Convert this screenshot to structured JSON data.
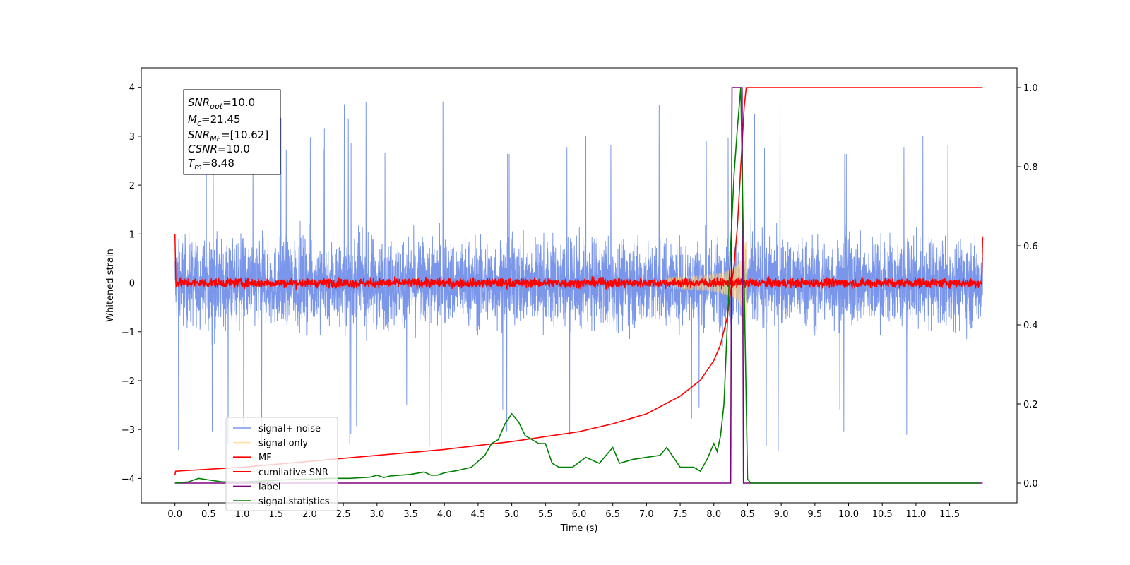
{
  "chart_data": {
    "type": "line",
    "xlabel": "Time (s)",
    "ylabel": "Whitened strain",
    "xlim": [
      -0.5,
      12.5
    ],
    "ylim": [
      -4.5,
      4.4
    ],
    "ylim_right": [
      -0.05,
      1.05
    ],
    "x_ticks": [
      0.0,
      0.5,
      1.0,
      1.5,
      2.0,
      2.5,
      3.0,
      3.5,
      4.0,
      4.5,
      5.0,
      5.5,
      6.0,
      6.5,
      7.0,
      7.5,
      8.0,
      8.5,
      9.0,
      9.5,
      10.0,
      10.5,
      11.0,
      11.5
    ],
    "x_tick_labels": [
      "0.0",
      "0.5",
      "1.0",
      "1.5",
      "2.0",
      "2.5",
      "3.0",
      "3.5",
      "4.0",
      "4.5",
      "5.0",
      "5.5",
      "6.0",
      "6.5",
      "7.0",
      "7.5",
      "8.0",
      "8.5",
      "9.0",
      "9.5",
      "10.0",
      "10.5",
      "11.0",
      "11.5"
    ],
    "y_ticks": [
      4,
      3,
      2,
      1,
      0,
      -1,
      -2,
      -3,
      -4
    ],
    "y_tick_labels": [
      "4",
      "3",
      "2",
      "1",
      "0",
      "−1",
      "−2",
      "−3",
      "−4"
    ],
    "y_right_ticks": [
      1.0,
      0.8,
      0.6,
      0.4,
      0.2,
      0.0
    ],
    "y_right_tick_labels": [
      "1.0",
      "0.8",
      "0.6",
      "0.4",
      "0.2",
      "0.0"
    ],
    "annotation": {
      "lines": [
        {
          "base": "SNR",
          "sub": "opt",
          "rest": "=10.0"
        },
        {
          "base": "M",
          "sub": "c",
          "rest": "=21.45"
        },
        {
          "base": "SNR",
          "sub": "MF",
          "rest": "=[10.62]"
        },
        {
          "base": "CSNR",
          "sub": "",
          "rest": "=10.0"
        },
        {
          "base": "T",
          "sub": "m",
          "rest": "=8.48"
        }
      ]
    },
    "legend_placement": "lower-left",
    "series": [
      {
        "name": "signal+ noise",
        "color": "#4169e1",
        "axis": "left",
        "x_range": [
          0.0,
          11.99
        ],
        "envelope": "noise, mostly within ±1.5, spikes to about ±3.9"
      },
      {
        "name": "signal only",
        "color": "#ffd27f",
        "axis": "left",
        "x_range": [
          7.3,
          8.48
        ],
        "envelope": "chirp, amplitude growing to about ±0.8 near 8.4"
      },
      {
        "name": "MF",
        "color": "#ff0000",
        "axis": "left",
        "x_range": [
          0.0,
          11.99
        ],
        "envelope": "noise around 0, within about ±0.25"
      },
      {
        "name": "cumilative SNR",
        "color": "#ff0000",
        "axis": "right",
        "x": [
          0.0,
          0.01,
          1.0,
          2.0,
          3.0,
          4.0,
          5.0,
          6.0,
          6.5,
          7.0,
          7.5,
          7.8,
          8.0,
          8.1,
          8.2,
          8.3,
          8.35,
          8.4,
          8.45,
          8.48,
          9.0,
          10.0,
          11.0,
          11.99
        ],
        "y": [
          0.02,
          0.03,
          0.04,
          0.055,
          0.07,
          0.085,
          0.105,
          0.13,
          0.15,
          0.175,
          0.22,
          0.26,
          0.31,
          0.35,
          0.42,
          0.55,
          0.65,
          0.8,
          0.95,
          1.0,
          1.0,
          1.0,
          1.0,
          1.0
        ]
      },
      {
        "name": "label",
        "color": "#800080",
        "axis": "right",
        "x": [
          0.0,
          8.25,
          8.27,
          8.42,
          8.44,
          8.45,
          11.99
        ],
        "y": [
          0.0,
          0.0,
          1.0,
          1.0,
          0.0,
          0.0,
          0.0
        ]
      },
      {
        "name": "signal statistics",
        "color": "#008000",
        "axis": "right",
        "x": [
          0.0,
          0.2,
          0.35,
          0.5,
          0.7,
          1.0,
          1.3,
          1.6,
          2.0,
          2.3,
          2.6,
          2.9,
          3.0,
          3.1,
          3.2,
          3.5,
          3.7,
          3.8,
          3.9,
          4.0,
          4.2,
          4.4,
          4.6,
          4.7,
          4.8,
          4.9,
          5.0,
          5.1,
          5.2,
          5.3,
          5.4,
          5.5,
          5.6,
          5.7,
          5.9,
          6.1,
          6.3,
          6.5,
          6.6,
          6.8,
          7.0,
          7.2,
          7.3,
          7.5,
          7.7,
          7.8,
          7.9,
          8.0,
          8.05,
          8.1,
          8.15,
          8.2,
          8.25,
          8.3,
          8.35,
          8.4,
          8.44,
          8.5,
          8.55,
          8.6,
          9.0,
          10.0,
          11.0,
          11.95
        ],
        "y": [
          0.0,
          0.003,
          0.012,
          0.008,
          0.003,
          0.003,
          0.005,
          0.008,
          0.01,
          0.012,
          0.012,
          0.015,
          0.02,
          0.014,
          0.018,
          0.022,
          0.028,
          0.02,
          0.02,
          0.026,
          0.032,
          0.04,
          0.07,
          0.1,
          0.11,
          0.15,
          0.175,
          0.155,
          0.12,
          0.11,
          0.1,
          0.1,
          0.05,
          0.04,
          0.04,
          0.065,
          0.05,
          0.09,
          0.05,
          0.06,
          0.065,
          0.07,
          0.09,
          0.04,
          0.04,
          0.03,
          0.06,
          0.1,
          0.08,
          0.12,
          0.2,
          0.4,
          0.6,
          0.78,
          0.9,
          1.0,
          0.6,
          0.01,
          0.0,
          0.0,
          0.0,
          0.0,
          0.0,
          0.0
        ]
      }
    ]
  }
}
